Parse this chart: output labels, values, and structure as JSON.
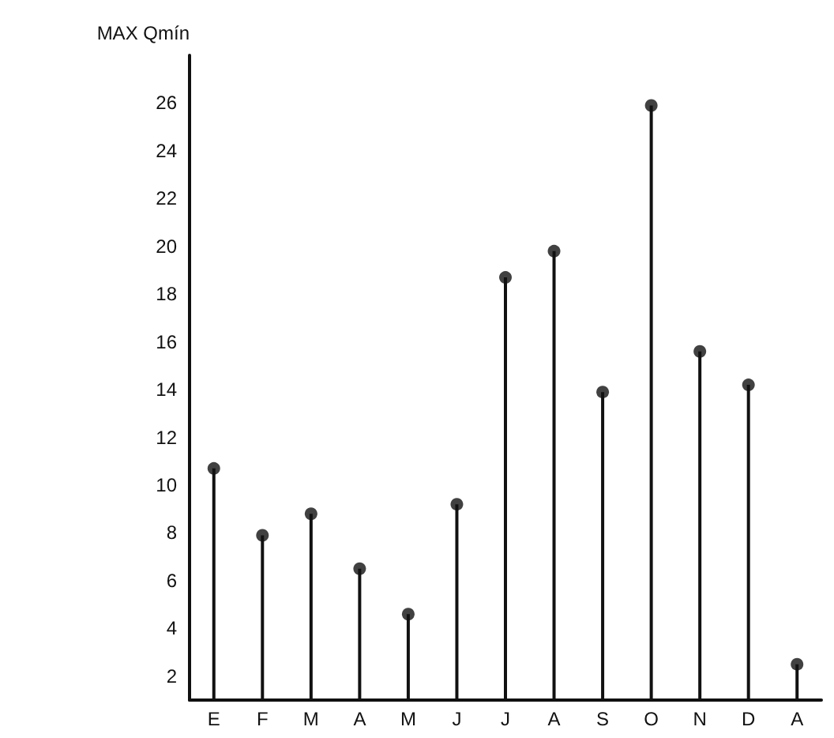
{
  "chart_data": {
    "type": "lollipop",
    "ylabel": "MAX Qmín",
    "categories": [
      "E",
      "F",
      "M",
      "A",
      "M",
      "J",
      "J",
      "A",
      "S",
      "O",
      "N",
      "D",
      "A"
    ],
    "values": [
      10.7,
      7.9,
      8.8,
      6.5,
      4.6,
      9.2,
      18.7,
      19.8,
      13.9,
      25.9,
      15.6,
      14.2,
      2.5
    ],
    "color": "#111111",
    "marker": "circle",
    "grid": false,
    "ylim": [
      1,
      28
    ],
    "yticks": [
      2,
      4,
      6,
      8,
      10,
      12,
      14,
      16,
      18,
      20,
      22,
      24,
      26
    ]
  }
}
